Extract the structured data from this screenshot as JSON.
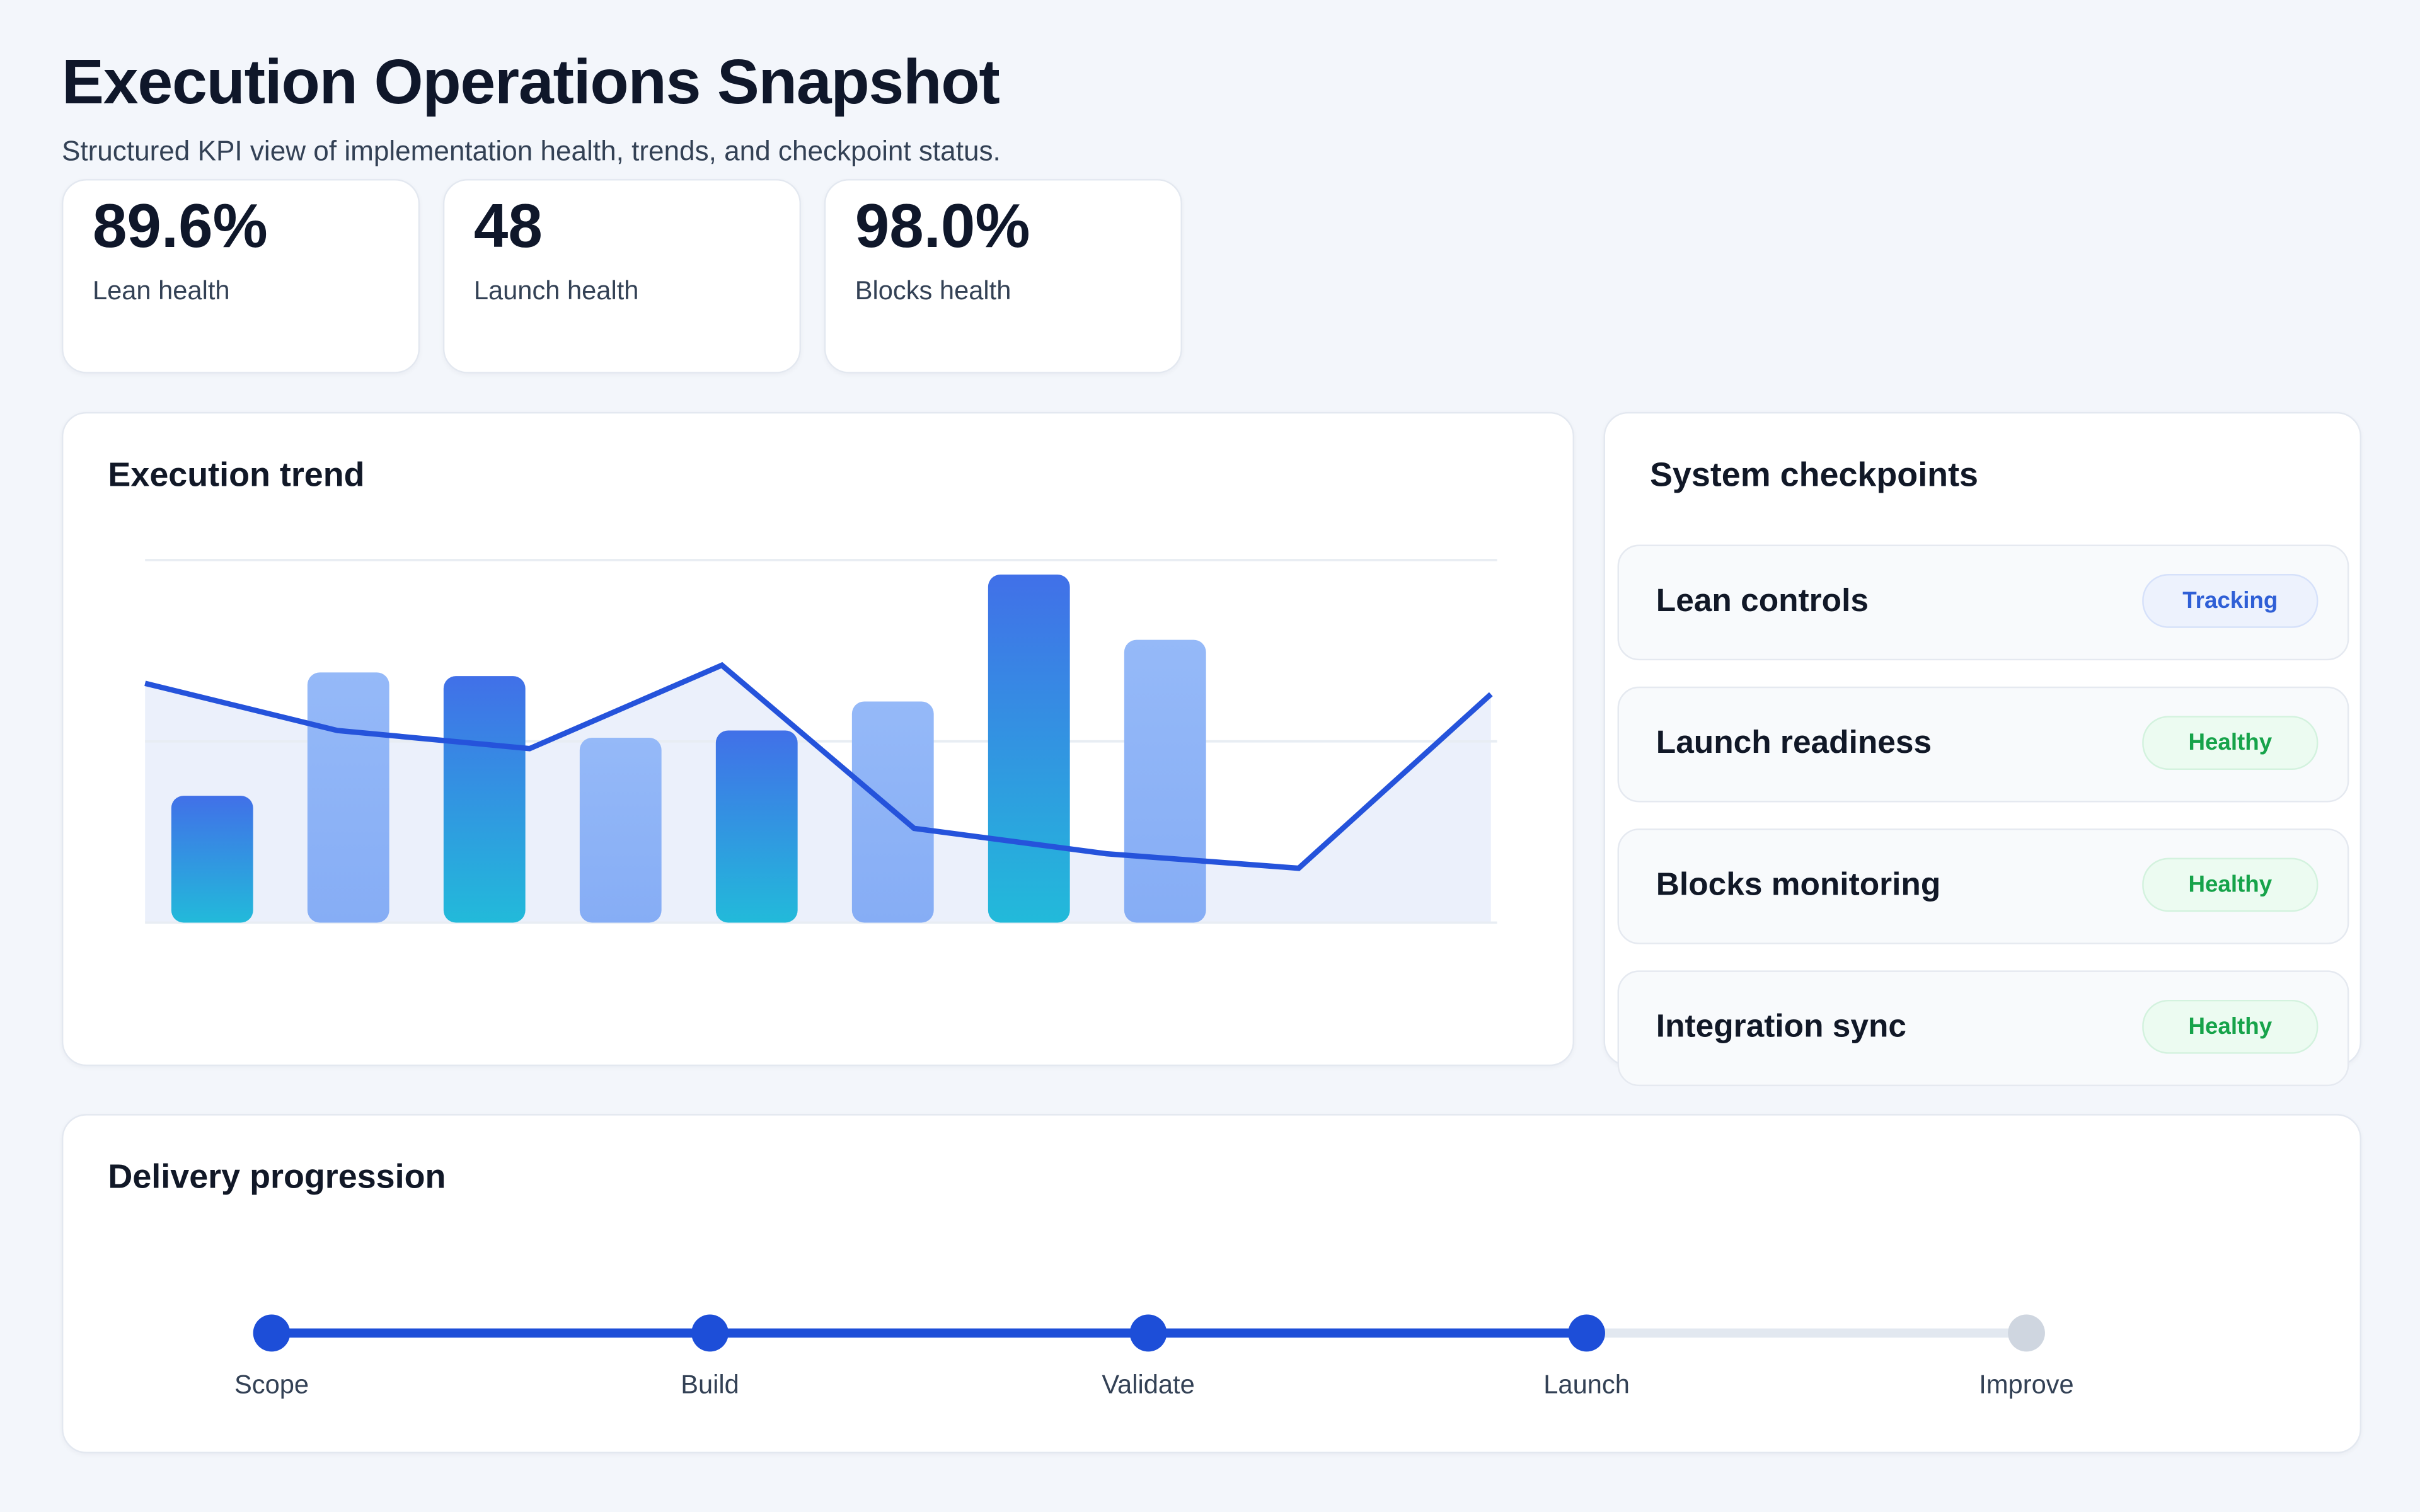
{
  "header": {
    "title": "Execution Operations Snapshot",
    "subtitle": "Structured KPI view of implementation health, trends, and checkpoint status."
  },
  "kpis": [
    {
      "value": "89.6%",
      "label": "Lean health"
    },
    {
      "value": "48",
      "label": "Launch health"
    },
    {
      "value": "98.0%",
      "label": "Blocks health"
    }
  ],
  "trend": {
    "title": "Execution trend"
  },
  "chart_data": {
    "type": "bar",
    "title": "Execution trend",
    "xlabel": "",
    "ylabel": "",
    "ylim": [
      0,
      100
    ],
    "grid": true,
    "gridlines": [
      0,
      50,
      100
    ],
    "bars": [
      35,
      69,
      68,
      51,
      53,
      61,
      96,
      78
    ],
    "line": [
      66,
      53,
      48,
      71,
      26,
      19,
      15,
      63
    ],
    "colors": {
      "bar_dark_top": "#3f6fe8",
      "bar_dark_bottom": "#22b8dc",
      "bar_light": "#8db3f7",
      "line": "#2553db",
      "area": "#e6ecfa"
    }
  },
  "checkpoints": {
    "title": "System checkpoints",
    "items": [
      {
        "name": "Lean controls",
        "status": "Tracking",
        "status_color": "#2f5fd6"
      },
      {
        "name": "Launch readiness",
        "status": "Healthy",
        "status_color": "#16a34a"
      },
      {
        "name": "Blocks monitoring",
        "status": "Healthy",
        "status_color": "#16a34a"
      },
      {
        "name": "Integration sync",
        "status": "Healthy",
        "status_color": "#16a34a"
      }
    ]
  },
  "delivery": {
    "title": "Delivery progression",
    "steps": [
      {
        "label": "Scope",
        "done": true
      },
      {
        "label": "Build",
        "done": true
      },
      {
        "label": "Validate",
        "done": true
      },
      {
        "label": "Launch",
        "done": true
      },
      {
        "label": "Improve",
        "done": false
      }
    ],
    "accent": "#1d4ed8"
  }
}
